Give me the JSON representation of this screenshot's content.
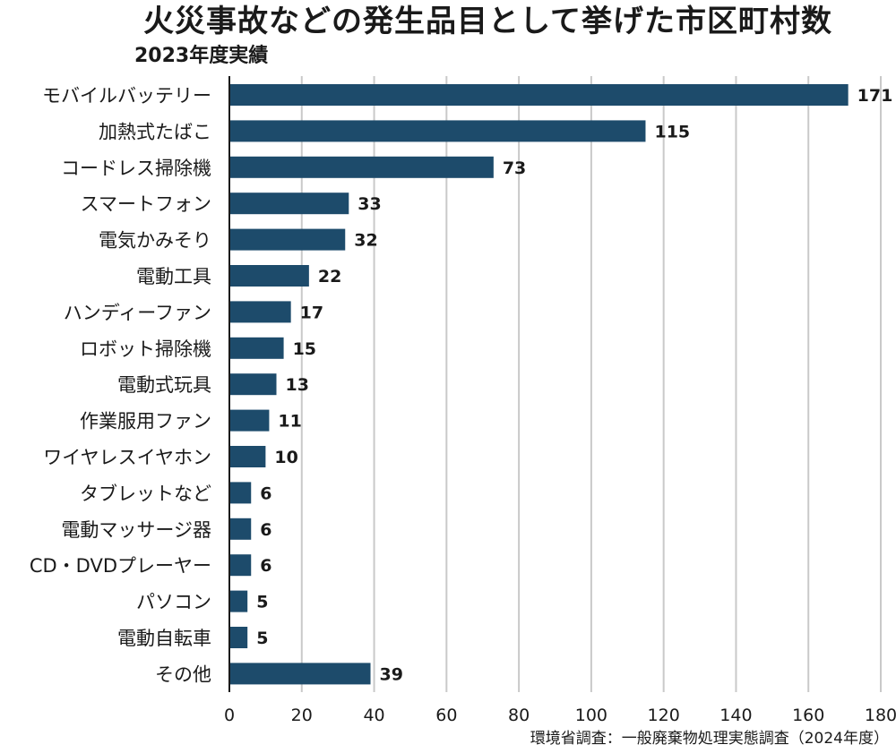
{
  "title": "火災事故などの発生品目として挙げた市区町村数",
  "subtitle": "2023年度実績",
  "source": "環境省調査：一般廃棄物処理実態調査（2024年度）",
  "colors": {
    "bar": "#1d4b6b",
    "grid": "#c9c9c9",
    "axis": "#1a1a1a"
  },
  "chart_data": {
    "type": "bar",
    "orientation": "horizontal",
    "categories": [
      "モバイルバッテリー",
      "加熱式たばこ",
      "コードレス掃除機",
      "スマートフォン",
      "電気かみそり",
      "電動工具",
      "ハンディーファン",
      "ロボット掃除機",
      "電動式玩具",
      "作業服用ファン",
      "ワイヤレスイヤホン",
      "タブレットなど",
      "電動マッサージ器",
      "CD・DVDプレーヤー",
      "パソコン",
      "電動自転車",
      "その他"
    ],
    "values": [
      171,
      115,
      73,
      33,
      32,
      22,
      17,
      15,
      13,
      11,
      10,
      6,
      6,
      6,
      5,
      5,
      39
    ],
    "xlim": [
      0,
      180
    ],
    "xticks": [
      0,
      20,
      40,
      60,
      80,
      100,
      120,
      140,
      160,
      180
    ],
    "grid": true
  }
}
